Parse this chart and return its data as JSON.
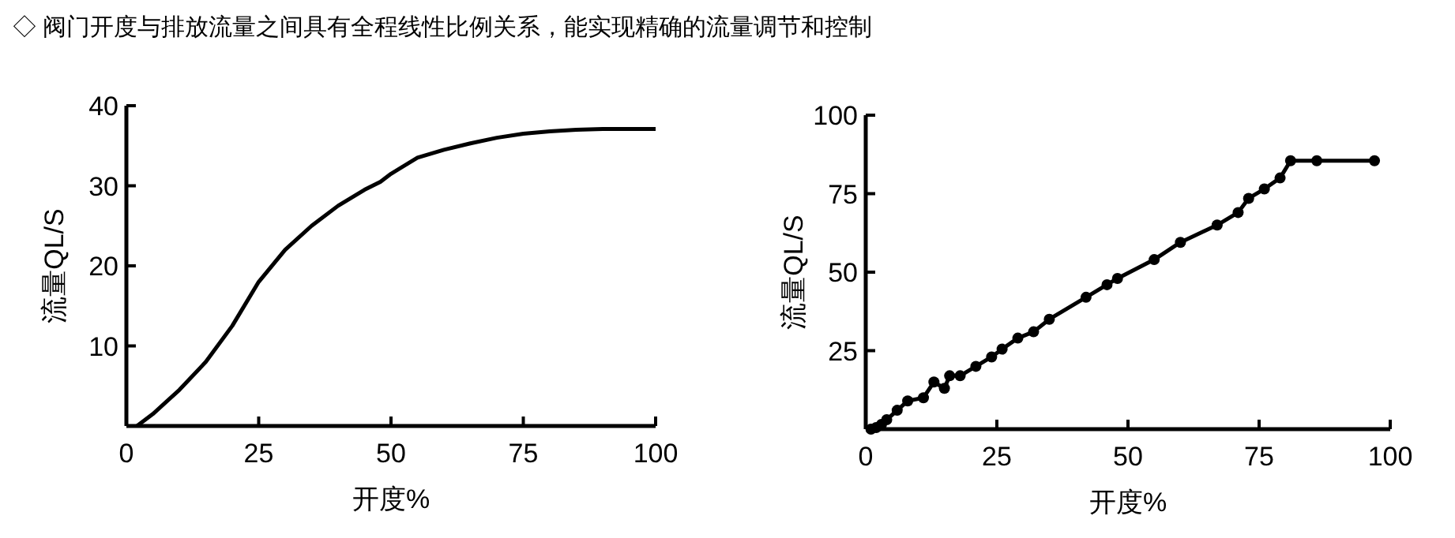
{
  "chart_data": [
    {
      "type": "line",
      "title": "◇ 阀门开度与排放流量之间具有全程线性比例关系，能实现精确的流量调节和控制",
      "xlabel": "开度%",
      "ylabel": "流量QL/S",
      "xlim": [
        0,
        100
      ],
      "ylim": [
        0,
        40
      ],
      "xticks": [
        0,
        25,
        50,
        75,
        100
      ],
      "yticks": [
        10,
        20,
        30,
        40
      ],
      "marker": "none",
      "line_style": "solid",
      "x": [
        2,
        5,
        10,
        15,
        20,
        25,
        30,
        35,
        40,
        45,
        48,
        50,
        55,
        60,
        65,
        70,
        75,
        80,
        85,
        90,
        100
      ],
      "series": [
        {
          "color": "#000000",
          "values": [
            0,
            1.5,
            4.5,
            8,
            12.5,
            18,
            22,
            25,
            27.5,
            29.5,
            30.5,
            31.5,
            33.5,
            34.5,
            35.3,
            36,
            36.5,
            36.8,
            37,
            37.1,
            37.1
          ]
        }
      ]
    },
    {
      "type": "line",
      "xlabel": "开度%",
      "ylabel": "流量QL/S",
      "xlim": [
        0,
        100
      ],
      "ylim": [
        0,
        100
      ],
      "xticks": [
        0,
        25,
        50,
        75,
        100
      ],
      "yticks": [
        25,
        50,
        75,
        100
      ],
      "marker": "circle",
      "line_style": "solid",
      "x": [
        1,
        2,
        3,
        4,
        6,
        8,
        11,
        13,
        15,
        16,
        18,
        21,
        24,
        26,
        29,
        32,
        35,
        42,
        46,
        48,
        55,
        60,
        67,
        71,
        73,
        76,
        79,
        81,
        86,
        97
      ],
      "series": [
        {
          "color": "#000000",
          "values": [
            0,
            0.5,
            1.5,
            3,
            6,
            9,
            10,
            15,
            13,
            17,
            17,
            20,
            23,
            25.5,
            29,
            31,
            35,
            42,
            46,
            48,
            54,
            59.5,
            65,
            69,
            73.5,
            76.5,
            80,
            85.5,
            85.5,
            85.5
          ]
        }
      ]
    }
  ]
}
